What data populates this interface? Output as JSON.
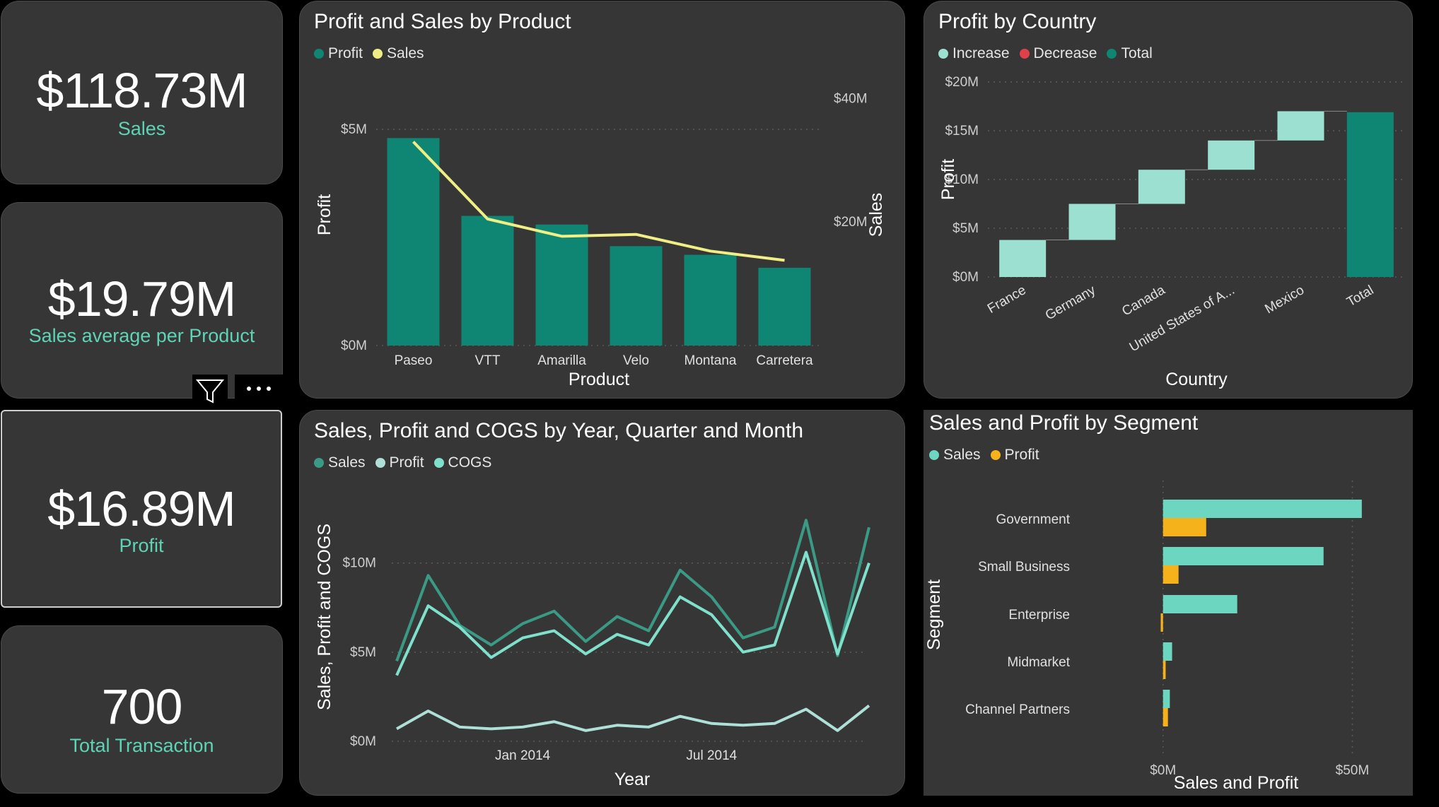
{
  "kpis": [
    {
      "value": "$118.73M",
      "label": "Sales"
    },
    {
      "value": "$19.79M",
      "label": "Sales average per Product"
    },
    {
      "value": "$16.89M",
      "label": "Profit"
    },
    {
      "value": "700",
      "label": "Total Transaction"
    }
  ],
  "colors": {
    "card": "#363636",
    "accent": "#5fd3b5",
    "profit": "#0f8573",
    "sales_line": "#f0ef85",
    "increase": "#9be0d0",
    "decrease": "#e0404a",
    "total": "#0f8573",
    "sales_series": "#3a9a85",
    "profit_series": "#aee0d8",
    "cogs_series": "#7fe0cc",
    "seg_sales": "#6dd6c0",
    "seg_profit": "#f5b21a"
  },
  "icons": {
    "filter": "filter-icon",
    "more": "more-options-icon"
  },
  "chart_data": [
    {
      "id": "profit_sales_by_product",
      "type": "bar",
      "title": "Profit and Sales by Product",
      "legend": [
        "Profit",
        "Sales"
      ],
      "categories": [
        "Paseo",
        "VTT",
        "Amarilla",
        "Velo",
        "Montana",
        "Carretera"
      ],
      "series": [
        {
          "name": "Profit",
          "axis": "left",
          "type": "bar",
          "values": [
            4.8,
            3.0,
            2.8,
            2.3,
            2.1,
            1.8
          ]
        },
        {
          "name": "Sales",
          "axis": "right",
          "type": "line",
          "values": [
            33.0,
            20.5,
            17.7,
            18.0,
            15.3,
            13.8
          ]
        }
      ],
      "xlabel": "Product",
      "ylabel": "Profit",
      "y2label": "Sales",
      "ylim": [
        0,
        6
      ],
      "y2lim": [
        0,
        42
      ],
      "yticks": [
        {
          "v": 0,
          "label": "$0M"
        },
        {
          "v": 5,
          "label": "$5M"
        }
      ],
      "y2ticks": [
        {
          "v": 20,
          "label": "$20M"
        },
        {
          "v": 40,
          "label": "$40M"
        }
      ]
    },
    {
      "id": "profit_by_country",
      "type": "waterfall",
      "title": "Profit by Country",
      "legend": [
        "Increase",
        "Decrease",
        "Total"
      ],
      "categories": [
        "France",
        "Germany",
        "Canada",
        "United States of A...",
        "Mexico",
        "Total"
      ],
      "values": [
        3.8,
        3.7,
        3.5,
        3.0,
        3.0,
        16.9
      ],
      "xlabel": "Country",
      "ylabel": "Profit",
      "ylim": [
        0,
        20
      ],
      "yticks": [
        {
          "v": 0,
          "label": "$0M"
        },
        {
          "v": 5,
          "label": "$5M"
        },
        {
          "v": 10,
          "label": "$10M"
        },
        {
          "v": 15,
          "label": "$15M"
        },
        {
          "v": 20,
          "label": "$20M"
        }
      ]
    },
    {
      "id": "sales_profit_cogs_by_time",
      "type": "line",
      "title": "Sales, Profit and COGS by Year, Quarter and Month",
      "legend": [
        "Sales",
        "Profit",
        "COGS"
      ],
      "x": [
        "Sep 2013",
        "Oct 2013",
        "Nov 2013",
        "Dec 2013",
        "Jan 2014",
        "Feb 2014",
        "Mar 2014",
        "Apr 2014",
        "May 2014",
        "Jun 2014",
        "Jul 2014",
        "Aug 2014",
        "Sep 2014",
        "Oct 2014",
        "Nov 2014",
        "Dec 2014"
      ],
      "series": [
        {
          "name": "Sales",
          "values": [
            4.5,
            9.3,
            6.5,
            5.4,
            6.6,
            7.3,
            5.6,
            7.0,
            6.2,
            9.6,
            8.1,
            5.8,
            6.4,
            12.4,
            4.8,
            12.0
          ]
        },
        {
          "name": "Profit",
          "values": [
            0.7,
            1.7,
            0.8,
            0.7,
            0.8,
            1.1,
            0.6,
            0.9,
            0.8,
            1.4,
            1.0,
            0.9,
            1.0,
            1.8,
            0.6,
            2.0
          ]
        },
        {
          "name": "COGS",
          "values": [
            3.7,
            7.6,
            6.4,
            4.7,
            5.8,
            6.2,
            4.9,
            6.0,
            5.4,
            8.1,
            7.1,
            5.0,
            5.4,
            10.6,
            4.9,
            10.0
          ]
        }
      ],
      "xticks": [
        {
          "i": 4,
          "label": "Jan 2014"
        },
        {
          "i": 10,
          "label": "Jul 2014"
        }
      ],
      "xlabel": "Year",
      "ylabel": "Sales, Profit and COGS",
      "ylim": [
        0,
        13
      ],
      "yticks": [
        {
          "v": 0,
          "label": "$0M"
        },
        {
          "v": 5,
          "label": "$5M"
        },
        {
          "v": 10,
          "label": "$10M"
        }
      ]
    },
    {
      "id": "sales_profit_by_segment",
      "type": "bar",
      "orientation": "horizontal",
      "title": "Sales and Profit by Segment",
      "legend": [
        "Sales",
        "Profit"
      ],
      "categories": [
        "Government",
        "Small Business",
        "Enterprise",
        "Midmarket",
        "Channel Partners"
      ],
      "series": [
        {
          "name": "Sales",
          "values": [
            52.5,
            42.4,
            19.6,
            2.4,
            1.8
          ]
        },
        {
          "name": "Profit",
          "values": [
            11.4,
            4.1,
            -0.6,
            0.7,
            1.3
          ]
        }
      ],
      "xlabel": "Sales and Profit",
      "ylabel": "Segment",
      "xlim": [
        -2,
        60
      ],
      "xticks": [
        {
          "v": 0,
          "label": "$0M"
        },
        {
          "v": 50,
          "label": "$50M"
        }
      ]
    }
  ]
}
